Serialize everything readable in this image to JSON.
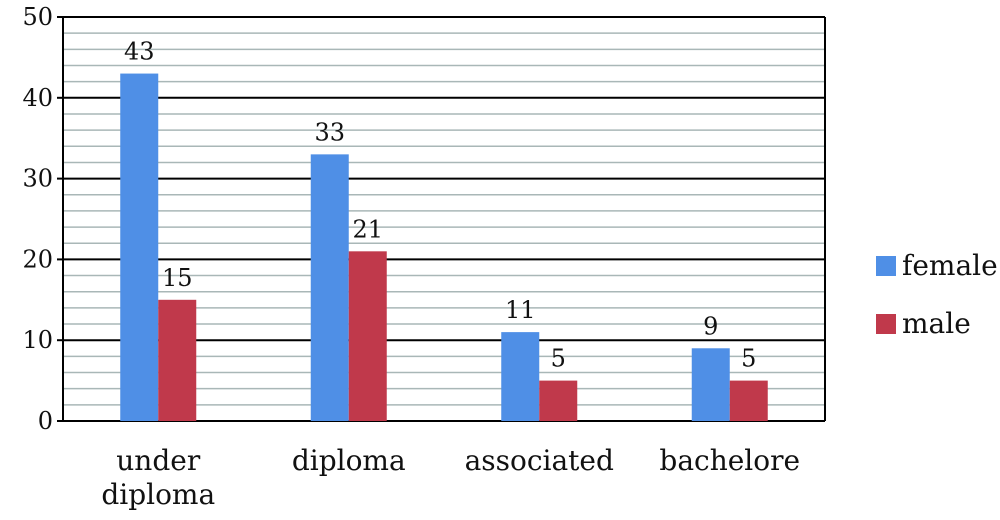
{
  "chart_data": {
    "type": "bar",
    "categories": [
      [
        "under",
        "diploma"
      ],
      [
        "diploma"
      ],
      [
        "associated"
      ],
      [
        "bachelore"
      ]
    ],
    "series": [
      {
        "name": "female",
        "values": [
          43,
          33,
          11,
          9
        ],
        "color": "#4f8fe6"
      },
      {
        "name": "male",
        "values": [
          15,
          21,
          5,
          5
        ],
        "color": "#c0394b"
      }
    ],
    "ylim": [
      0,
      50
    ],
    "yticks": [
      0,
      10,
      20,
      30,
      40,
      50
    ],
    "minor_grid_step": 2,
    "grid": true,
    "data_labels": true,
    "legend_position": "right",
    "title": "",
    "xlabel": "",
    "ylabel": ""
  }
}
